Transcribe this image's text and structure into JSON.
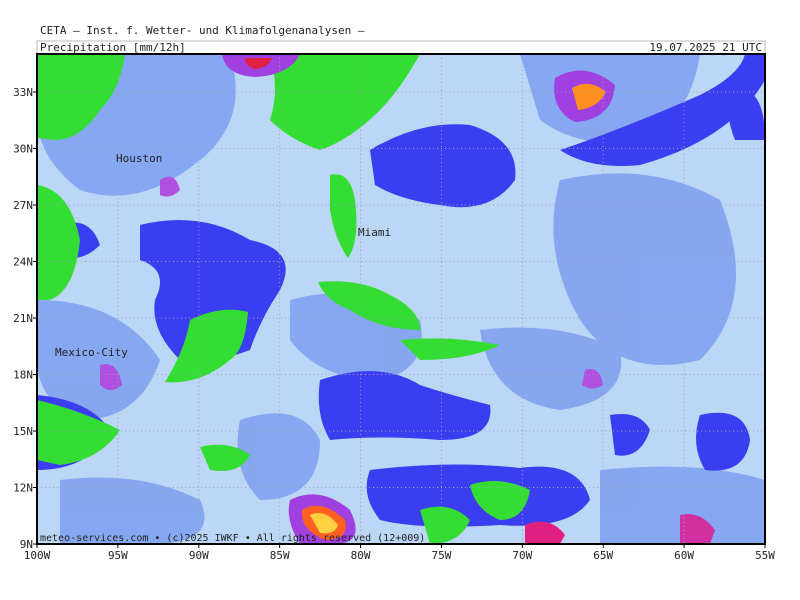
{
  "header": {
    "title": "CETA – Inst. f. Wetter- und Klimafolgenanalysen –",
    "product": "Precipitation [mm/12h]",
    "valid_time": "19.07.2025 21 UTC"
  },
  "map": {
    "lat_labels": [
      "33N",
      "30N",
      "27N",
      "24N",
      "21N",
      "18N",
      "15N",
      "12N",
      "9N"
    ],
    "lon_labels": [
      "100W",
      "95W",
      "90W",
      "85W",
      "80W",
      "75W",
      "70W",
      "65W",
      "60W",
      "55W"
    ],
    "places": [
      "Houston",
      "Miami",
      "Mexico-City"
    ],
    "footer": "meteo-services.com • (c)2025 IWKF • All rights reserved (12+009)"
  }
}
